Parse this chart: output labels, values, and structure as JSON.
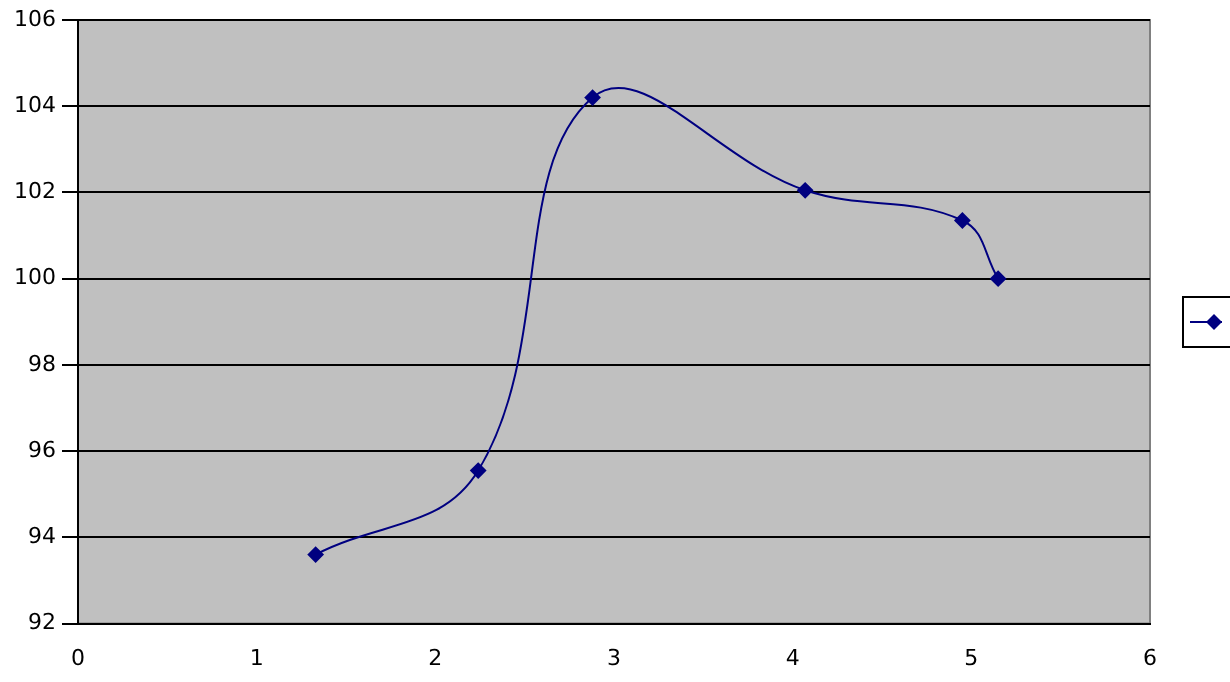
{
  "chart_data": {
    "type": "line",
    "x": [
      1.33,
      2.24,
      2.88,
      4.07,
      4.95,
      5.15
    ],
    "series": [
      {
        "color": "#000080",
        "values": [
          93.6,
          95.55,
          104.2,
          102.05,
          101.35,
          100.0
        ]
      }
    ],
    "xlim": [
      0,
      6
    ],
    "xticks": [
      0,
      1,
      2,
      3,
      4,
      5,
      6
    ],
    "ylim": [
      92,
      106
    ],
    "yticks": [
      92,
      94,
      96,
      98,
      100,
      102,
      104,
      106
    ],
    "grid": "y",
    "marker": "diamond",
    "line_style": "solid"
  }
}
